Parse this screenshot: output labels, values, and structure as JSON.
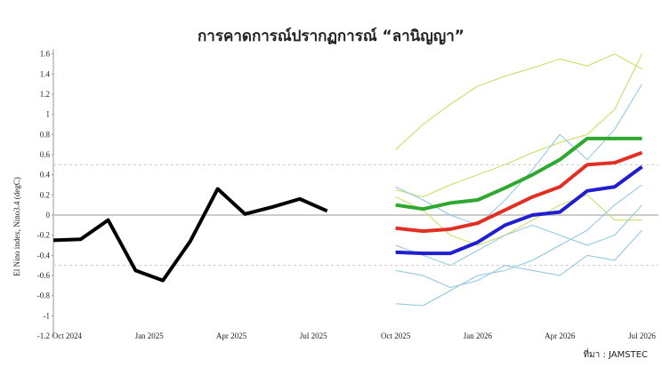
{
  "chart_data": {
    "type": "line",
    "title": "การคาดการณ์ปรากฏการณ์ “ลานิญญา”",
    "y_label": "El Nino index, Nino3.4 (degC)",
    "source": "ที่มา : JAMSTEC",
    "xlim": [
      -0.5,
      21.6
    ],
    "xticks": [
      {
        "value": 0,
        "label": "Oct 2024"
      },
      {
        "value": 3,
        "label": "Jan 2025"
      },
      {
        "value": 6,
        "label": "Apr 2025"
      },
      {
        "value": 9,
        "label": "Jul 2025"
      },
      {
        "value": 12,
        "label": "Oct 2025"
      },
      {
        "value": 15,
        "label": "Jan 2026"
      },
      {
        "value": 18,
        "label": "Apr 2026"
      },
      {
        "value": 21,
        "label": "Jul 2026"
      }
    ],
    "ylim": [
      -1.2,
      1.65
    ],
    "yticks": [
      -1.2,
      -1,
      -0.8,
      -0.6,
      -0.4,
      -0.2,
      0,
      0.2,
      0.4,
      0.6,
      0.8,
      1,
      1.2,
      1.4,
      1.6
    ],
    "reference_lines": [
      0.5,
      -0.5
    ],
    "series": [
      {
        "color": "#c8dc5a",
        "width": 1,
        "x": [
          12,
          13,
          14,
          15,
          16,
          17,
          18,
          19,
          20,
          21
        ],
        "values": [
          0.65,
          0.9,
          1.1,
          1.28,
          1.38,
          1.46,
          1.55,
          1.48,
          1.6,
          1.45
        ]
      },
      {
        "color": "#c8dc5a",
        "width": 1,
        "x": [
          12,
          13,
          14,
          15,
          16,
          17,
          18,
          19,
          20,
          21
        ],
        "values": [
          0.25,
          0.18,
          0.3,
          0.4,
          0.5,
          0.62,
          0.72,
          0.8,
          1.05,
          1.6
        ]
      },
      {
        "color": "#c8dc5a",
        "width": 1,
        "x": [
          12,
          13,
          14,
          15,
          16,
          17,
          18,
          19,
          20,
          21
        ],
        "values": [
          0.18,
          0.05,
          -0.2,
          -0.3,
          -0.2,
          -0.05,
          0.1,
          0.2,
          -0.05,
          -0.05
        ]
      },
      {
        "color": "#8ec5e0",
        "width": 1,
        "x": [
          12,
          13,
          14,
          15,
          16,
          17,
          18,
          19,
          20,
          21
        ],
        "values": [
          -0.55,
          -0.6,
          -0.72,
          -0.65,
          -0.5,
          -0.55,
          -0.6,
          -0.4,
          -0.45,
          -0.15
        ]
      },
      {
        "color": "#8ec5e0",
        "width": 1,
        "x": [
          12,
          13,
          14,
          15,
          16,
          17,
          18,
          19,
          20,
          21
        ],
        "values": [
          -0.88,
          -0.9,
          -0.75,
          -0.6,
          -0.55,
          -0.45,
          -0.3,
          -0.15,
          0.1,
          0.3
        ]
      },
      {
        "color": "#8ec5e0",
        "width": 1,
        "x": [
          12,
          13,
          14,
          15,
          16,
          17,
          18,
          19,
          20,
          21
        ],
        "values": [
          0.28,
          0.15,
          0.0,
          -0.1,
          0.15,
          0.45,
          0.8,
          0.55,
          0.85,
          1.3
        ]
      },
      {
        "color": "#8ec5e0",
        "width": 1,
        "x": [
          12,
          13,
          14,
          15,
          16,
          17,
          18,
          19,
          20,
          21
        ],
        "values": [
          -0.3,
          -0.4,
          -0.5,
          -0.35,
          -0.2,
          -0.1,
          -0.2,
          -0.3,
          -0.2,
          0.1
        ]
      },
      {
        "color": "#000000",
        "width": 4,
        "x": [
          -0.5,
          0.5,
          1.5,
          2.5,
          3.5,
          4.5,
          5.5,
          6.5,
          7.5,
          8.5,
          9.5
        ],
        "values": [
          -0.25,
          -0.24,
          -0.05,
          -0.55,
          -0.65,
          -0.26,
          0.26,
          0.01,
          0.08,
          0.16,
          0.04
        ]
      },
      {
        "color": "#2fa82f",
        "width": 4,
        "x": [
          12,
          13,
          14,
          15,
          16,
          17,
          18,
          19,
          20,
          21
        ],
        "values": [
          0.1,
          0.06,
          0.12,
          0.15,
          0.27,
          0.4,
          0.55,
          0.76,
          0.76,
          0.76
        ]
      },
      {
        "color": "#e03024",
        "width": 4,
        "x": [
          12,
          13,
          14,
          15,
          16,
          17,
          18,
          19,
          20,
          21
        ],
        "values": [
          -0.13,
          -0.16,
          -0.14,
          -0.08,
          0.05,
          0.18,
          0.28,
          0.5,
          0.52,
          0.62
        ]
      },
      {
        "color": "#1f1fd0",
        "width": 4,
        "x": [
          12,
          13,
          14,
          15,
          16,
          17,
          18,
          19,
          20,
          21
        ],
        "values": [
          -0.37,
          -0.38,
          -0.38,
          -0.27,
          -0.1,
          0.0,
          0.03,
          0.24,
          0.28,
          0.48
        ]
      }
    ]
  }
}
